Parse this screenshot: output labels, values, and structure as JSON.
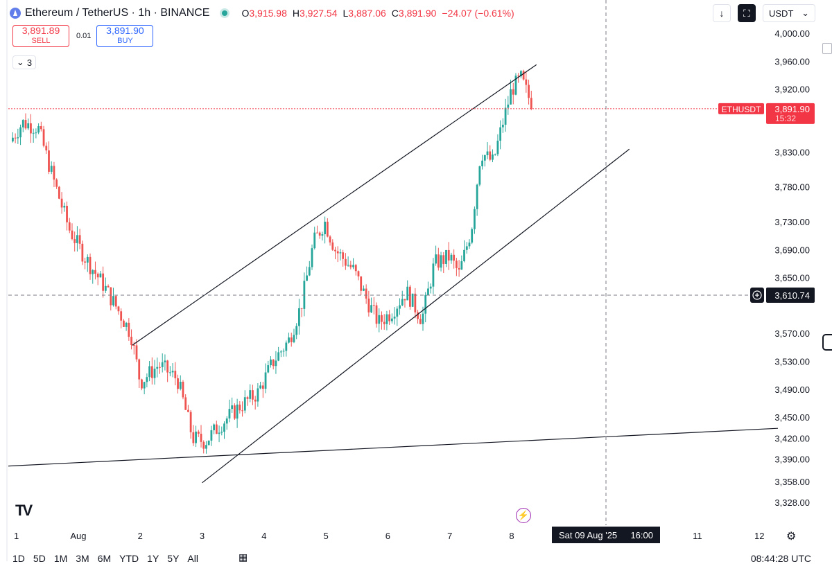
{
  "header": {
    "symbol_title": "Ethereum / TetherUS · 1h · BINANCE",
    "ohlc": [
      {
        "key": "O",
        "value": "3,915.98"
      },
      {
        "key": "H",
        "value": "3,927.54"
      },
      {
        "key": "L",
        "value": "3,887.06"
      },
      {
        "key": "C",
        "value": "3,891.90"
      }
    ],
    "change": "−24.07 (−0.61%)"
  },
  "trade": {
    "sell_price": "3,891.89",
    "sell_label": "SELL",
    "spread": "0.01",
    "buy_price": "3,891.90",
    "buy_label": "BUY"
  },
  "indicator_toggle": {
    "icon": "chevron-down-icon",
    "count": "3"
  },
  "toolbar": {
    "currency": "USDT"
  },
  "price_tag": {
    "symbol": "ETHUSDT",
    "price": "3,891.90",
    "countdown": "15:32"
  },
  "crosshair": {
    "price_label": "3,610.74",
    "date_label": "Sat 09 Aug '25",
    "time_label": "16:00"
  },
  "bottom_bar": {
    "ranges": [
      "1D",
      "5D",
      "1M",
      "3M",
      "6M",
      "YTD",
      "1Y",
      "5Y",
      "All"
    ],
    "clock": "08:44:28 UTC"
  },
  "colors": {
    "up": "#26a69a",
    "down": "#ef5350",
    "accent_blue": "#2962ff",
    "sell_red": "#f23645"
  },
  "chart_data": {
    "type": "candlestick",
    "interval": "1h",
    "y_ticks": [
      4000.0,
      3960.0,
      3920.0,
      3830.0,
      3780.0,
      3730.0,
      3690.0,
      3650.0,
      3570.0,
      3530.0,
      3490.0,
      3450.0,
      3420.0,
      3390.0,
      3358.0,
      3328.0
    ],
    "x_ticks": [
      {
        "label": "1",
        "day": 1
      },
      {
        "label": "Aug",
        "day": 2
      },
      {
        "label": "2",
        "day": 3
      },
      {
        "label": "3",
        "day": 4
      },
      {
        "label": "4",
        "day": 5
      },
      {
        "label": "5",
        "day": 6
      },
      {
        "label": "6",
        "day": 7
      },
      {
        "label": "7",
        "day": 8
      },
      {
        "label": "8",
        "day": 9
      },
      {
        "label": "11",
        "day": 12
      },
      {
        "label": "12",
        "day": 13
      }
    ],
    "x_range": [
      0.87,
      13.0
    ],
    "last_price": 3891.9,
    "anchors": [
      {
        "day": 0.9,
        "price": 3845
      },
      {
        "day": 1.1,
        "price": 3872
      },
      {
        "day": 1.35,
        "price": 3865
      },
      {
        "day": 1.6,
        "price": 3790
      },
      {
        "day": 1.85,
        "price": 3720
      },
      {
        "day": 2.1,
        "price": 3680
      },
      {
        "day": 2.4,
        "price": 3640
      },
      {
        "day": 2.6,
        "price": 3610
      },
      {
        "day": 2.85,
        "price": 3570
      },
      {
        "day": 3.0,
        "price": 3500
      },
      {
        "day": 3.3,
        "price": 3525
      },
      {
        "day": 3.6,
        "price": 3505
      },
      {
        "day": 3.85,
        "price": 3420
      },
      {
        "day": 4.05,
        "price": 3415
      },
      {
        "day": 4.3,
        "price": 3440
      },
      {
        "day": 4.6,
        "price": 3465
      },
      {
        "day": 4.9,
        "price": 3485
      },
      {
        "day": 5.15,
        "price": 3530
      },
      {
        "day": 5.4,
        "price": 3560
      },
      {
        "day": 5.6,
        "price": 3610
      },
      {
        "day": 5.8,
        "price": 3700
      },
      {
        "day": 5.98,
        "price": 3730
      },
      {
        "day": 6.15,
        "price": 3690
      },
      {
        "day": 6.45,
        "price": 3660
      },
      {
        "day": 6.65,
        "price": 3620
      },
      {
        "day": 6.85,
        "price": 3585
      },
      {
        "day": 7.05,
        "price": 3600
      },
      {
        "day": 7.3,
        "price": 3630
      },
      {
        "day": 7.55,
        "price": 3590
      },
      {
        "day": 7.75,
        "price": 3670
      },
      {
        "day": 8.0,
        "price": 3680
      },
      {
        "day": 8.15,
        "price": 3655
      },
      {
        "day": 8.35,
        "price": 3720
      },
      {
        "day": 8.5,
        "price": 3830
      },
      {
        "day": 8.7,
        "price": 3815
      },
      {
        "day": 8.85,
        "price": 3870
      },
      {
        "day": 9.0,
        "price": 3920
      },
      {
        "day": 9.15,
        "price": 3935
      },
      {
        "day": 9.35,
        "price": 3892
      }
    ],
    "trend_lines": [
      {
        "name": "channel-upper",
        "from": {
          "day": 2.87,
          "price": 3553
        },
        "to": {
          "day": 9.4,
          "price": 3955
        }
      },
      {
        "name": "channel-lower",
        "from": {
          "day": 4.0,
          "price": 3356
        },
        "to": {
          "day": 10.9,
          "price": 3834
        }
      },
      {
        "name": "support-line",
        "from": {
          "day": 0.87,
          "price": 3380
        },
        "to": {
          "day": 13.3,
          "price": 3434
        }
      }
    ]
  }
}
